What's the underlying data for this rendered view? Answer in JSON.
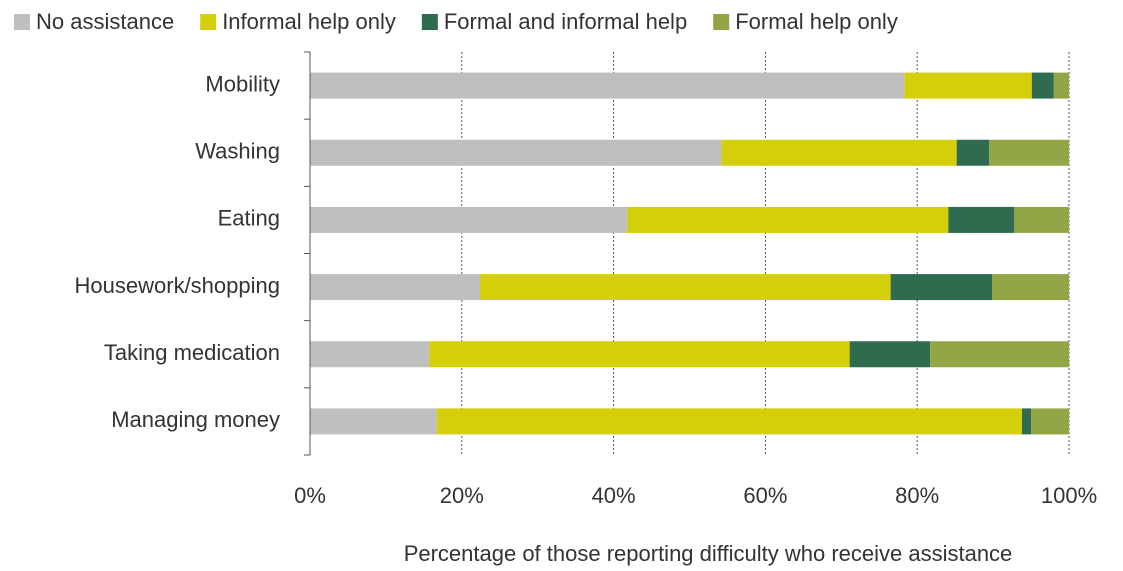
{
  "chart_data": {
    "type": "stacked-bar-horizontal",
    "xlabel": "Percentage of those reporting difficulty who receive assistance",
    "categories": [
      "Mobility",
      "Washing",
      "Eating",
      "Housework/shopping",
      "Taking medication",
      "Managing money"
    ],
    "series": [
      {
        "name": "No assistance",
        "color": "#bfbfbf",
        "values": [
          78.3,
          54.2,
          41.8,
          22.4,
          15.7,
          16.7
        ]
      },
      {
        "name": "Informal help only",
        "color": "#d4cf0a",
        "values": [
          16.8,
          31.0,
          42.3,
          54.1,
          55.4,
          77.1
        ]
      },
      {
        "name": "Formal and informal help",
        "color": "#2e6b4f",
        "values": [
          2.9,
          4.3,
          8.7,
          13.4,
          10.6,
          1.2
        ]
      },
      {
        "name": "Formal help only",
        "color": "#92a645",
        "values": [
          2.0,
          10.5,
          7.2,
          10.1,
          18.3,
          5.0
        ]
      }
    ],
    "xlim": [
      0,
      100
    ],
    "xticks": [
      {
        "value": 0,
        "label": "0%"
      },
      {
        "value": 20,
        "label": "20%"
      },
      {
        "value": 40,
        "label": "40%"
      },
      {
        "value": 60,
        "label": "60%"
      },
      {
        "value": 80,
        "label": "80%"
      },
      {
        "value": 100,
        "label": "100%"
      }
    ],
    "grid": true,
    "legend": "top"
  }
}
